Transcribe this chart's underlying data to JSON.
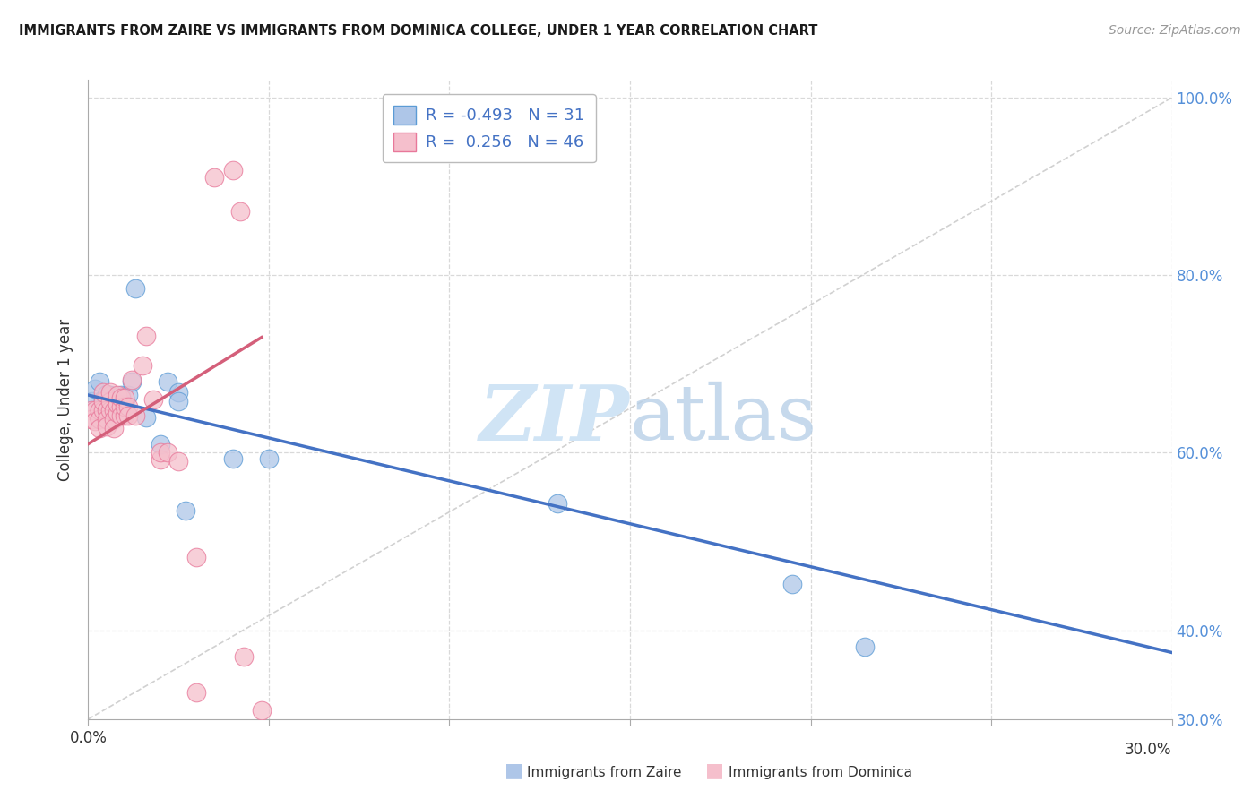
{
  "title": "IMMIGRANTS FROM ZAIRE VS IMMIGRANTS FROM DOMINICA COLLEGE, UNDER 1 YEAR CORRELATION CHART",
  "source": "Source: ZipAtlas.com",
  "ylabel": "College, Under 1 year",
  "legend_blue_label": "Immigrants from Zaire",
  "legend_pink_label": "Immigrants from Dominica",
  "R_blue": -0.493,
  "N_blue": 31,
  "R_pink": 0.256,
  "N_pink": 46,
  "xlim": [
    0.0,
    0.3
  ],
  "ylim": [
    0.3,
    1.02
  ],
  "xtick_vals": [
    0.0,
    0.05,
    0.1,
    0.15,
    0.2,
    0.25,
    0.3
  ],
  "right_ytick_vals": [
    1.0,
    0.8,
    0.6,
    0.4,
    0.3
  ],
  "right_ytick_labels": [
    "100.0%",
    "80.0%",
    "60.0%",
    "40.0%",
    "30.0%"
  ],
  "grid_ytick_vals": [
    1.0,
    0.8,
    0.6,
    0.4
  ],
  "color_blue_fill": "#aec6e8",
  "color_blue_edge": "#5b9bd5",
  "color_pink_fill": "#f5bfcc",
  "color_pink_edge": "#e8789a",
  "color_line_blue": "#4472c4",
  "color_line_pink": "#d45f7a",
  "color_ref_line": "#cccccc",
  "color_grid": "#d9d9d9",
  "background_color": "#ffffff",
  "watermark_color": "#d0e4f5",
  "blue_dots_x": [
    0.001,
    0.002,
    0.003,
    0.004,
    0.004,
    0.005,
    0.005,
    0.006,
    0.006,
    0.007,
    0.007,
    0.008,
    0.008,
    0.009,
    0.009,
    0.01,
    0.01,
    0.011,
    0.012,
    0.013,
    0.016,
    0.02,
    0.022,
    0.025,
    0.025,
    0.027,
    0.04,
    0.05,
    0.13,
    0.195,
    0.215
  ],
  "blue_dots_y": [
    0.658,
    0.672,
    0.68,
    0.66,
    0.65,
    0.658,
    0.666,
    0.655,
    0.665,
    0.648,
    0.658,
    0.66,
    0.645,
    0.655,
    0.665,
    0.655,
    0.645,
    0.665,
    0.68,
    0.785,
    0.64,
    0.61,
    0.68,
    0.668,
    0.658,
    0.535,
    0.593,
    0.593,
    0.543,
    0.452,
    0.382
  ],
  "pink_dots_x": [
    0.001,
    0.001,
    0.002,
    0.002,
    0.003,
    0.003,
    0.003,
    0.004,
    0.004,
    0.004,
    0.005,
    0.005,
    0.005,
    0.006,
    0.006,
    0.006,
    0.007,
    0.007,
    0.007,
    0.008,
    0.008,
    0.008,
    0.009,
    0.009,
    0.009,
    0.01,
    0.01,
    0.01,
    0.011,
    0.011,
    0.012,
    0.013,
    0.015,
    0.016,
    0.018,
    0.02,
    0.02,
    0.022,
    0.025,
    0.03,
    0.03,
    0.035,
    0.04,
    0.042,
    0.043,
    0.048
  ],
  "pink_dots_y": [
    0.648,
    0.638,
    0.648,
    0.636,
    0.648,
    0.638,
    0.628,
    0.648,
    0.658,
    0.668,
    0.648,
    0.638,
    0.63,
    0.648,
    0.658,
    0.668,
    0.648,
    0.638,
    0.628,
    0.645,
    0.655,
    0.665,
    0.652,
    0.662,
    0.642,
    0.642,
    0.652,
    0.662,
    0.652,
    0.642,
    0.682,
    0.642,
    0.698,
    0.732,
    0.66,
    0.592,
    0.6,
    0.6,
    0.59,
    0.482,
    0.33,
    0.91,
    0.918,
    0.872,
    0.37,
    0.31
  ],
  "blue_line_x": [
    0.0,
    0.3
  ],
  "blue_line_y": [
    0.665,
    0.375
  ],
  "pink_line_x": [
    0.0,
    0.048
  ],
  "pink_line_y": [
    0.61,
    0.73
  ],
  "ref_line_x": [
    0.0,
    0.3
  ],
  "ref_line_y": [
    0.3,
    1.0
  ]
}
